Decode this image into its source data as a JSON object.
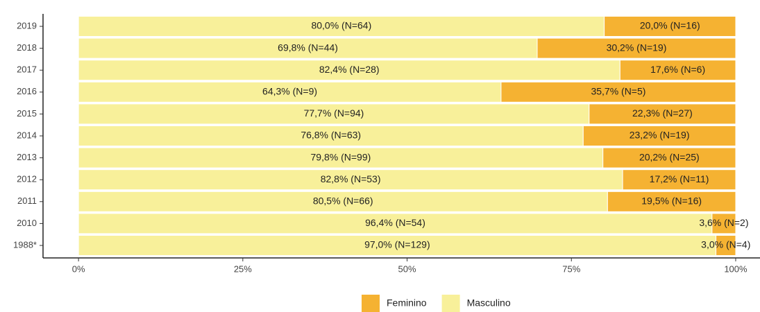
{
  "chart_data": {
    "type": "stacked_barh",
    "categories": [
      "2019",
      "2018",
      "2017",
      "2016",
      "2015",
      "2014",
      "2013",
      "2012",
      "2011",
      "2010",
      "1988*"
    ],
    "series": [
      {
        "name": "Feminino",
        "color": "#f5b232",
        "values": [
          20.0,
          30.2,
          17.6,
          35.7,
          22.3,
          23.2,
          20.2,
          17.2,
          19.5,
          3.6,
          3.0
        ],
        "value_labels": [
          "20,0% (N=16)",
          "30,2% (N=19)",
          "17,6% (N=6)",
          "35,7% (N=5)",
          "22,3% (N=27)",
          "23,2% (N=19)",
          "20,2% (N=25)",
          "17,2% (N=11)",
          "19,5% (N=16)",
          "3,6% (N=2)",
          "3,0% (N=4)"
        ]
      },
      {
        "name": "Masculino",
        "color": "#f8f09a",
        "values": [
          80.0,
          69.8,
          82.4,
          64.3,
          77.7,
          76.8,
          79.8,
          82.8,
          80.5,
          96.4,
          97.0
        ],
        "value_labels": [
          "80,0% (N=64)",
          "69,8% (N=44)",
          "82,4% (N=28)",
          "64,3% (N=9)",
          "77,7% (N=94)",
          "76,8% (N=63)",
          "79,8% (N=99)",
          "82,8% (N=53)",
          "80,5% (N=66)",
          "96,4% (N=54)",
          "97,0% (N=129)"
        ]
      }
    ],
    "xlim": [
      -5.4,
      103.7
    ],
    "xticks": [
      {
        "value": 0,
        "label": "0%"
      },
      {
        "value": 25,
        "label": "25%"
      },
      {
        "value": 50,
        "label": "50%"
      },
      {
        "value": 75,
        "label": "75%"
      },
      {
        "value": 100,
        "label": "100%"
      }
    ],
    "legend": "bottom"
  }
}
